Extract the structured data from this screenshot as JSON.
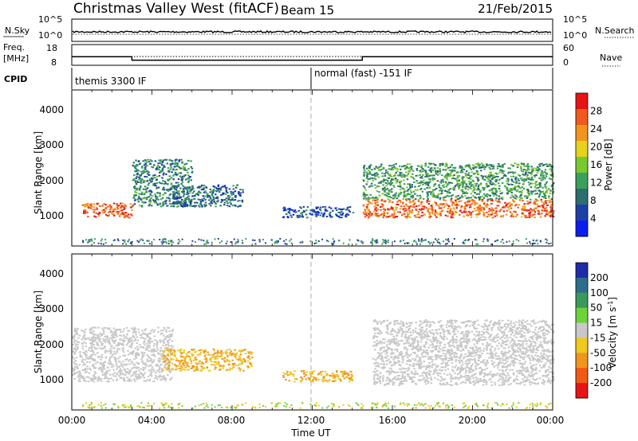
{
  "header": {
    "station": "Christmas Valley West (fitACF)",
    "beam": "Beam 15",
    "date": "21/Feb/2015"
  },
  "nsky_panel": {
    "left_label": "N.Sky",
    "right_label": "N.Search",
    "left_ticks": [
      "10^5",
      "10^0"
    ],
    "right_ticks": [
      "10^5",
      "10^0"
    ]
  },
  "freq_panel": {
    "left_label_1": "Freq.",
    "left_label_2": "[MHz]",
    "right_label": "Nave",
    "left_ticks": [
      "18",
      "8"
    ],
    "right_ticks": [
      "60",
      "0"
    ]
  },
  "cpid": {
    "label": "CPID",
    "mode_1": "themis 3300 IF",
    "mode_2": "normal (fast) -151 IF"
  },
  "power_panel": {
    "ylabel": "Slant Range [km]",
    "yticks": [
      "4000",
      "3000",
      "2000",
      "1000"
    ],
    "colorbar_label": "Power [dB]",
    "colorbar_ticks": [
      "28",
      "24",
      "20",
      "16",
      "12",
      "8",
      "4"
    ],
    "colors": [
      "#0a1ef0",
      "#1e3fa8",
      "#2e6e6e",
      "#3aa05a",
      "#78c832",
      "#e6d21e",
      "#f0961e",
      "#f05a1e",
      "#e61414"
    ]
  },
  "velocity_panel": {
    "ylabel": "Slant Range [km]",
    "yticks": [
      "4000",
      "3000",
      "2000",
      "1000"
    ],
    "colorbar_label": "Velocity [m s",
    "colorbar_label_sup": "-1",
    "colorbar_label_end": "]",
    "colorbar_ticks": [
      "200",
      "100",
      "50",
      "15",
      "-15",
      "-50",
      "-100",
      "-200"
    ],
    "colors": [
      "#1e2ca8",
      "#2e6e8a",
      "#3a9a5a",
      "#6ed23a",
      "#c8c8c8",
      "#f0c81e",
      "#f0961e",
      "#f05a14",
      "#e61414"
    ]
  },
  "xaxis": {
    "ticks": [
      "00:00",
      "04:00",
      "08:00",
      "12:00",
      "16:00",
      "20:00",
      "00:00"
    ],
    "label": "Time UT"
  },
  "chart_data": {
    "type": "heatmap",
    "x_unit": "hours UT",
    "xlim": [
      0,
      24
    ],
    "ylim": [
      200,
      4500
    ],
    "frequency_steps": [
      {
        "x": [
          0,
          3
        ],
        "value": 12
      },
      {
        "x": [
          3,
          14.5
        ],
        "value": 10
      },
      {
        "x": [
          14.5,
          24
        ],
        "value": 12
      }
    ],
    "power_features": [
      {
        "x": [
          0.5,
          3
        ],
        "range_km": [
          1000,
          1400
        ],
        "power_db": 26
      },
      {
        "x": [
          3,
          6
        ],
        "range_km": [
          1300,
          2600
        ],
        "power_db": 10
      },
      {
        "x": [
          5,
          8.5
        ],
        "range_km": [
          1300,
          1900
        ],
        "power_db": 8
      },
      {
        "x": [
          10.5,
          14
        ],
        "range_km": [
          1000,
          1300
        ],
        "power_db": 6
      },
      {
        "x": [
          14.5,
          24
        ],
        "range_km": [
          1000,
          1500
        ],
        "power_db": 26
      },
      {
        "x": [
          14.5,
          24
        ],
        "range_km": [
          1500,
          2500
        ],
        "power_db": 12
      }
    ],
    "velocity_features": [
      {
        "x": [
          0,
          5
        ],
        "range_km": [
          1000,
          2500
        ],
        "velocity": 0
      },
      {
        "x": [
          4.5,
          9
        ],
        "range_km": [
          1300,
          1900
        ],
        "velocity": -50
      },
      {
        "x": [
          10.5,
          14
        ],
        "range_km": [
          1000,
          1300
        ],
        "velocity": -50
      },
      {
        "x": [
          15,
          24
        ],
        "range_km": [
          900,
          2700
        ],
        "velocity": 0
      }
    ]
  }
}
